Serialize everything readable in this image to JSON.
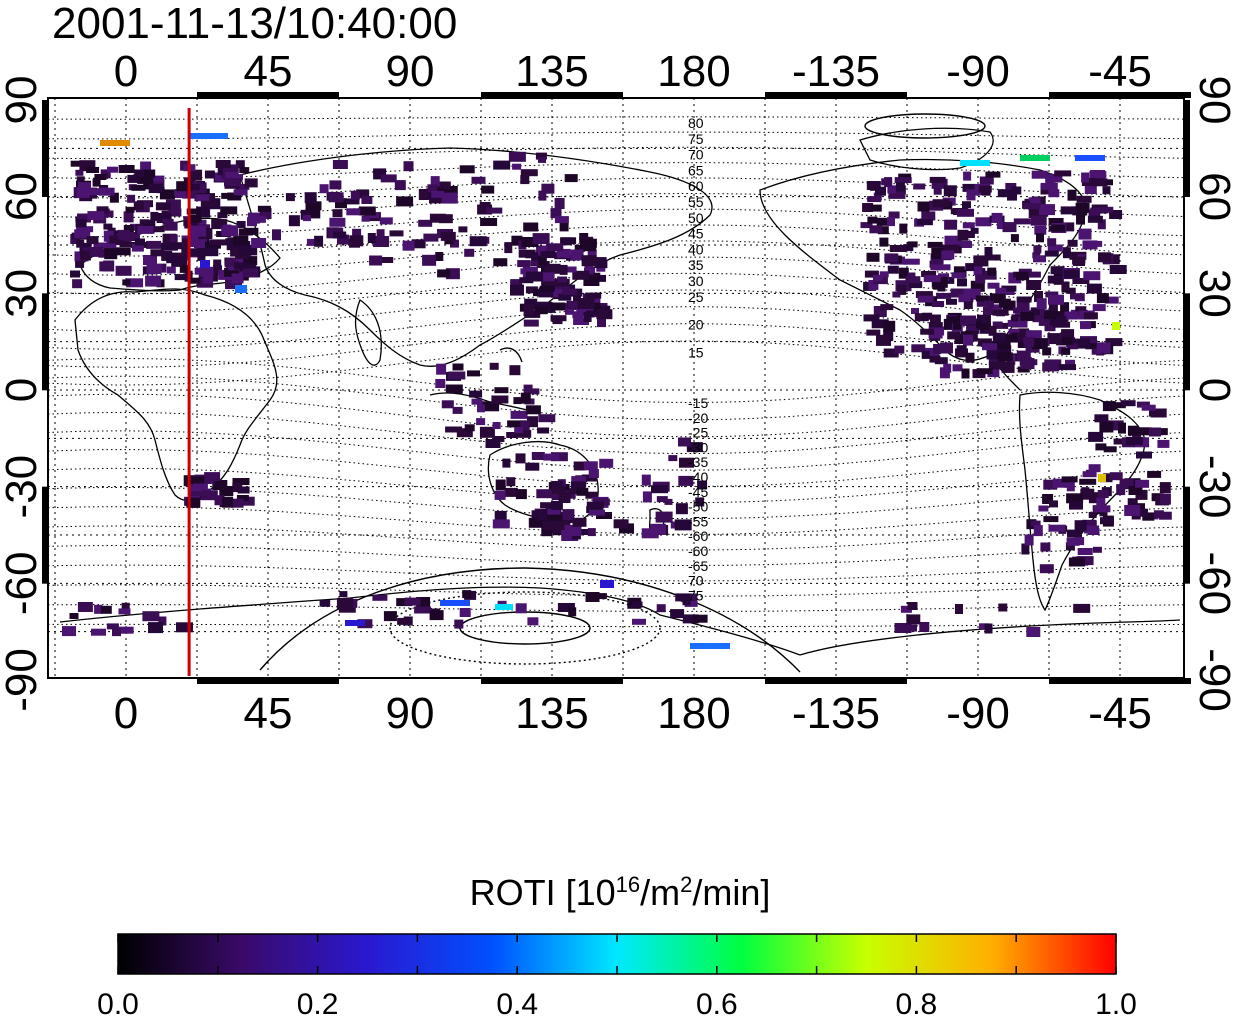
{
  "title": "2001-11-13/10:40:00",
  "map": {
    "top_axis_labels": [
      "0",
      "45",
      "90",
      "135",
      "180",
      "-135",
      "-90",
      "-45"
    ],
    "bottom_axis_labels": [
      "0",
      "45",
      "90",
      "135",
      "180",
      "-135",
      "-90",
      "-45"
    ],
    "left_axis_labels": [
      "90",
      "60",
      "30",
      "0",
      "-30",
      "-60",
      "-90"
    ],
    "right_axis_labels": [
      "90",
      "60",
      "30",
      "0",
      "-30",
      "-60",
      "-90"
    ],
    "contour_labels_north": [
      "80",
      "75",
      "70",
      "65",
      "60",
      "55",
      "50",
      "45",
      "40",
      "35",
      "30",
      "25",
      "20",
      "15"
    ],
    "contour_labels_south": [
      "-15",
      "-20",
      "-25",
      "-30",
      "-35",
      "-40",
      "-45",
      "-50",
      "-55",
      "-60",
      "-60",
      "-65",
      "70",
      "75"
    ],
    "red_line_longitude": 20
  },
  "colorbar": {
    "label_main": "ROTI  [10",
    "label_sup1": "16",
    "label_mid": "/m",
    "label_sup2": "2",
    "label_end": "/min]",
    "tick_labels": [
      "0.0",
      "0.2",
      "0.4",
      "0.6",
      "0.8",
      "1.0"
    ],
    "min": 0.0,
    "max": 1.0,
    "gradient_colors": [
      "#000000",
      "#3a0a6a",
      "#2a18d0",
      "#0050ff",
      "#00e8ff",
      "#00ff40",
      "#c8ff00",
      "#ffb000",
      "#ff0000"
    ]
  },
  "colors": {
    "frame": "#000000",
    "coastline": "#000000",
    "contour": "#000000",
    "red_line": "#cc0000",
    "roti_low": "#2a0838",
    "roti_mid": "#1a4fff",
    "roti_high": "#00e0ff"
  }
}
